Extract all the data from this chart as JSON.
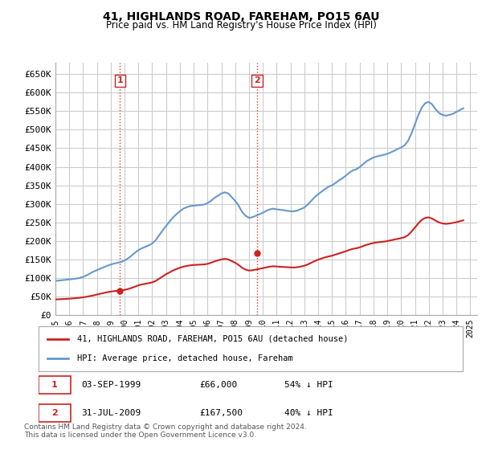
{
  "title": "41, HIGHLANDS ROAD, FAREHAM, PO15 6AU",
  "subtitle": "Price paid vs. HM Land Registry's House Price Index (HPI)",
  "ylabel_ticks": [
    "£0",
    "£50K",
    "£100K",
    "£150K",
    "£200K",
    "£250K",
    "£300K",
    "£350K",
    "£400K",
    "£450K",
    "£500K",
    "£550K",
    "£600K",
    "£650K"
  ],
  "ytick_values": [
    0,
    50000,
    100000,
    150000,
    200000,
    250000,
    300000,
    350000,
    400000,
    450000,
    500000,
    550000,
    600000,
    650000
  ],
  "ylim": [
    0,
    680000
  ],
  "xlim_start": 1995.0,
  "xlim_end": 2025.5,
  "xtick_labels": [
    "1995",
    "1996",
    "1997",
    "1998",
    "1999",
    "2000",
    "2001",
    "2002",
    "2003",
    "2004",
    "2005",
    "2006",
    "2007",
    "2008",
    "2009",
    "2010",
    "2011",
    "2012",
    "2013",
    "2014",
    "2015",
    "2016",
    "2017",
    "2018",
    "2019",
    "2020",
    "2021",
    "2022",
    "2023",
    "2024",
    "2025"
  ],
  "hpi_color": "#6699cc",
  "price_color": "#cc2222",
  "grid_color": "#cccccc",
  "background_color": "#ffffff",
  "transaction1_x": 1999.67,
  "transaction1_y": 66000,
  "transaction1_label": "1",
  "transaction2_x": 2009.58,
  "transaction2_y": 167500,
  "transaction2_label": "2",
  "vline_color": "#dd3333",
  "vline_style": ":",
  "legend_label1": "41, HIGHLANDS ROAD, FAREHAM, PO15 6AU (detached house)",
  "legend_label2": "HPI: Average price, detached house, Fareham",
  "annotation1_date": "03-SEP-1999",
  "annotation1_price": "£66,000",
  "annotation1_hpi": "54% ↓ HPI",
  "annotation2_date": "31-JUL-2009",
  "annotation2_price": "£167,500",
  "annotation2_hpi": "40% ↓ HPI",
  "footer": "Contains HM Land Registry data © Crown copyright and database right 2024.\nThis data is licensed under the Open Government Licence v3.0.",
  "hpi_data_x": [
    1995.0,
    1995.25,
    1995.5,
    1995.75,
    1996.0,
    1996.25,
    1996.5,
    1996.75,
    1997.0,
    1997.25,
    1997.5,
    1997.75,
    1998.0,
    1998.25,
    1998.5,
    1998.75,
    1999.0,
    1999.25,
    1999.5,
    1999.75,
    2000.0,
    2000.25,
    2000.5,
    2000.75,
    2001.0,
    2001.25,
    2001.5,
    2001.75,
    2002.0,
    2002.25,
    2002.5,
    2002.75,
    2003.0,
    2003.25,
    2003.5,
    2003.75,
    2004.0,
    2004.25,
    2004.5,
    2004.75,
    2005.0,
    2005.25,
    2005.5,
    2005.75,
    2006.0,
    2006.25,
    2006.5,
    2006.75,
    2007.0,
    2007.25,
    2007.5,
    2007.75,
    2008.0,
    2008.25,
    2008.5,
    2008.75,
    2009.0,
    2009.25,
    2009.5,
    2009.75,
    2010.0,
    2010.25,
    2010.5,
    2010.75,
    2011.0,
    2011.25,
    2011.5,
    2011.75,
    2012.0,
    2012.25,
    2012.5,
    2012.75,
    2013.0,
    2013.25,
    2013.5,
    2013.75,
    2014.0,
    2014.25,
    2014.5,
    2014.75,
    2015.0,
    2015.25,
    2015.5,
    2015.75,
    2016.0,
    2016.25,
    2016.5,
    2016.75,
    2017.0,
    2017.25,
    2017.5,
    2017.75,
    2018.0,
    2018.25,
    2018.5,
    2018.75,
    2019.0,
    2019.25,
    2019.5,
    2019.75,
    2020.0,
    2020.25,
    2020.5,
    2020.75,
    2021.0,
    2021.25,
    2021.5,
    2021.75,
    2022.0,
    2022.25,
    2022.5,
    2022.75,
    2023.0,
    2023.25,
    2023.5,
    2023.75,
    2024.0,
    2024.25,
    2024.5
  ],
  "hpi_data_y": [
    92000,
    93000,
    94000,
    95000,
    96000,
    97000,
    98500,
    100000,
    103000,
    107000,
    112000,
    117000,
    121000,
    125000,
    129000,
    133000,
    136000,
    139000,
    141000,
    143000,
    147000,
    153000,
    160000,
    168000,
    175000,
    180000,
    184000,
    188000,
    193000,
    202000,
    215000,
    228000,
    240000,
    252000,
    263000,
    272000,
    280000,
    287000,
    291000,
    294000,
    295000,
    296000,
    297000,
    298000,
    302000,
    308000,
    316000,
    322000,
    328000,
    331000,
    328000,
    318000,
    308000,
    295000,
    278000,
    268000,
    262000,
    264000,
    268000,
    272000,
    276000,
    281000,
    285000,
    287000,
    285000,
    284000,
    283000,
    281000,
    280000,
    280000,
    282000,
    286000,
    290000,
    298000,
    308000,
    318000,
    326000,
    333000,
    340000,
    346000,
    350000,
    356000,
    363000,
    369000,
    376000,
    384000,
    390000,
    393000,
    399000,
    407000,
    415000,
    420000,
    425000,
    428000,
    430000,
    432000,
    435000,
    439000,
    443000,
    448000,
    452000,
    458000,
    470000,
    490000,
    515000,
    540000,
    560000,
    572000,
    575000,
    568000,
    555000,
    545000,
    540000,
    538000,
    540000,
    543000,
    548000,
    553000,
    558000
  ],
  "price_data_x": [
    1995.0,
    1995.25,
    1995.5,
    1995.75,
    1996.0,
    1996.25,
    1996.5,
    1996.75,
    1997.0,
    1997.25,
    1997.5,
    1997.75,
    1998.0,
    1998.25,
    1998.5,
    1998.75,
    1999.0,
    1999.25,
    1999.5,
    1999.75,
    2000.0,
    2000.25,
    2000.5,
    2000.75,
    2001.0,
    2001.25,
    2001.5,
    2001.75,
    2002.0,
    2002.25,
    2002.5,
    2002.75,
    2003.0,
    2003.25,
    2003.5,
    2003.75,
    2004.0,
    2004.25,
    2004.5,
    2004.75,
    2005.0,
    2005.25,
    2005.5,
    2005.75,
    2006.0,
    2006.25,
    2006.5,
    2006.75,
    2007.0,
    2007.25,
    2007.5,
    2007.75,
    2008.0,
    2008.25,
    2008.5,
    2008.75,
    2009.0,
    2009.25,
    2009.5,
    2009.75,
    2010.0,
    2010.25,
    2010.5,
    2010.75,
    2011.0,
    2011.25,
    2011.5,
    2011.75,
    2012.0,
    2012.25,
    2012.5,
    2012.75,
    2013.0,
    2013.25,
    2013.5,
    2013.75,
    2014.0,
    2014.25,
    2014.5,
    2014.75,
    2015.0,
    2015.25,
    2015.5,
    2015.75,
    2016.0,
    2016.25,
    2016.5,
    2016.75,
    2017.0,
    2017.25,
    2017.5,
    2017.75,
    2018.0,
    2018.25,
    2018.5,
    2018.75,
    2019.0,
    2019.25,
    2019.5,
    2019.75,
    2020.0,
    2020.25,
    2020.5,
    2020.75,
    2021.0,
    2021.25,
    2021.5,
    2021.75,
    2022.0,
    2022.25,
    2022.5,
    2022.75,
    2023.0,
    2023.25,
    2023.5,
    2023.75,
    2024.0,
    2024.25,
    2024.5
  ],
  "price_data_y": [
    42000,
    42500,
    43000,
    43500,
    44000,
    44800,
    45600,
    46500,
    47800,
    49200,
    51000,
    53000,
    55200,
    57400,
    59500,
    61500,
    63000,
    64500,
    65500,
    66200,
    67800,
    70000,
    73000,
    76500,
    80000,
    82500,
    84200,
    86000,
    88000,
    92000,
    98000,
    104000,
    110000,
    115000,
    120000,
    124000,
    127500,
    130500,
    132500,
    134000,
    135000,
    135500,
    136000,
    136500,
    138000,
    141000,
    144500,
    147500,
    150000,
    151500,
    150000,
    145500,
    141000,
    135000,
    127500,
    122500,
    120000,
    120800,
    122500,
    124500,
    126500,
    128500,
    130500,
    131500,
    131000,
    130000,
    129500,
    129000,
    128500,
    128200,
    129000,
    130800,
    133000,
    136500,
    141000,
    145500,
    149500,
    152500,
    155500,
    158000,
    160000,
    163000,
    166000,
    169000,
    172000,
    175500,
    178500,
    180000,
    182500,
    186000,
    189500,
    192000,
    194500,
    196000,
    197000,
    198000,
    199500,
    201500,
    203500,
    205500,
    207500,
    210000,
    215500,
    225000,
    236000,
    247500,
    257000,
    262000,
    263500,
    260000,
    254500,
    249500,
    247000,
    246000,
    247000,
    248500,
    250500,
    253000,
    255500
  ]
}
